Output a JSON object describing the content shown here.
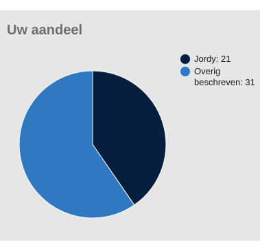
{
  "widget": {
    "title": "Uw aandeel"
  },
  "colors": {
    "background": "#e6e6e6",
    "title": "#6e6e6e",
    "slice_dark": "#061e3e",
    "slice_light": "#2f78c2"
  },
  "chart_data": {
    "type": "pie",
    "slices": [
      {
        "label": "Jordy",
        "value": 21,
        "color": "#061e3e"
      },
      {
        "label": "Overig beschreven",
        "value": 31,
        "color": "#2f78c2"
      }
    ],
    "legend": [
      {
        "text": "Jordy: 21",
        "color": "#061e3e"
      },
      {
        "text": "Overig beschreven: 31",
        "color": "#2f78c2"
      }
    ],
    "legend_position": "right",
    "start_angle": "top",
    "direction": "clockwise"
  }
}
